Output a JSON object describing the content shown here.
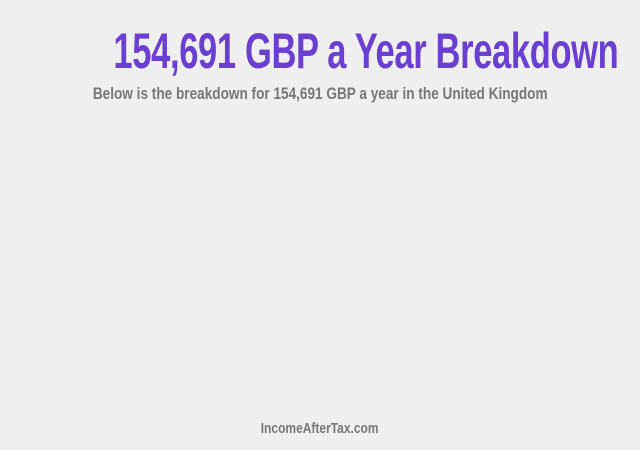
{
  "header": {
    "title": "154,691 GBP a Year Breakdown",
    "subtitle": "Below is the breakdown for 154,691 GBP a year in the United Kingdom"
  },
  "footer": {
    "site_name": "IncomeAfterTax.com"
  },
  "colors": {
    "title": "#6a3fd1",
    "text": "#777777",
    "background": "#efefef"
  }
}
